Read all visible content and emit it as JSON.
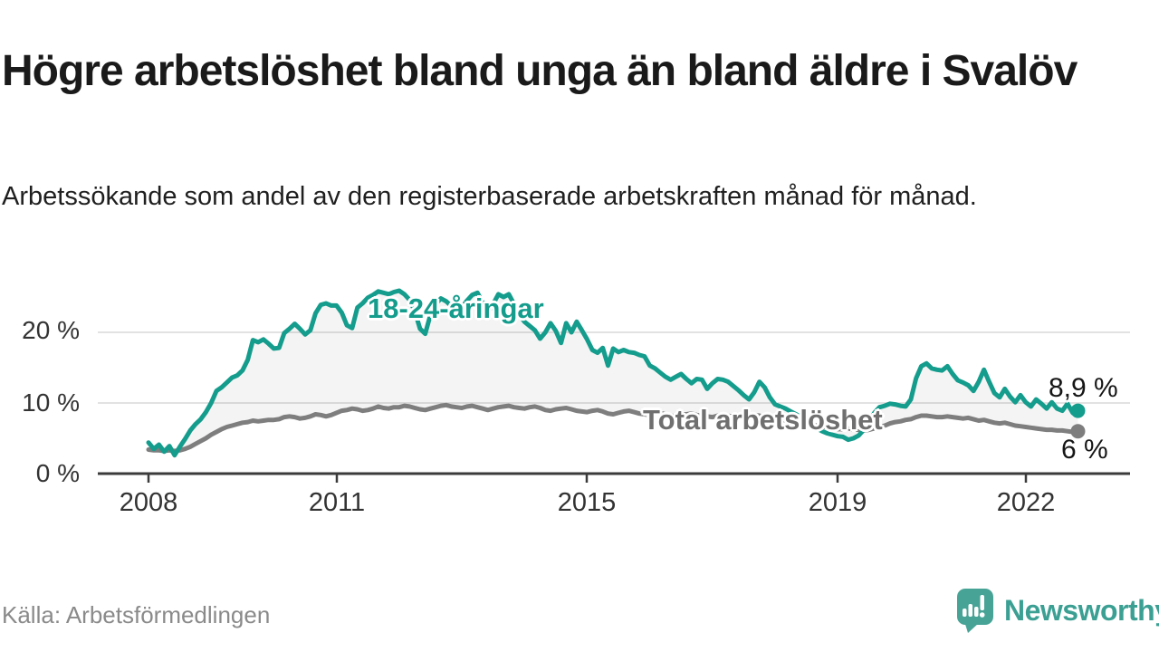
{
  "header": {
    "title": "Högre arbetslöshet bland unga än bland äldre i Svalöv",
    "subtitle": "Arbetssökande som andel av den registerbaserade arbetskraften månad för månad."
  },
  "footer": {
    "source": "Källa: Arbetsförmedlingen",
    "brand": "Newsworthy"
  },
  "colors": {
    "youth_line": "#149c8c",
    "total_line": "#7e7e7e",
    "between_fill": "rgba(130,130,130,0.09)",
    "grid": "#d8d8d8",
    "axis": "#3b3b3b",
    "logo": "#47a396",
    "brand_text": "#3ba093"
  },
  "chart_data": {
    "type": "line",
    "title": "Högre arbetslöshet bland unga än bland äldre i Svalöv",
    "subtitle": "Arbetssökande som andel av den registerbaserade arbetskraften månad för månad.",
    "source": "Källa: Arbetsförmedlingen",
    "frequency": "monthly",
    "x_start": "2008-01",
    "x_end": "2022-11",
    "ylim": [
      0,
      27
    ],
    "grid": "horizontal",
    "x_ticks": [
      "2008",
      "2011",
      "2015",
      "2019",
      "2022"
    ],
    "y_ticks": [
      "20 %",
      "10 %",
      "0 %"
    ],
    "y_tick_values": [
      20,
      10,
      0
    ],
    "series": [
      {
        "name": "18-24-åringar",
        "color": "#149c8c",
        "end_label": "8,9 %",
        "end_value": 8.9,
        "values": [
          4.4,
          3.5,
          4.1,
          3.1,
          3.9,
          2.6,
          3.8,
          4.9,
          6.1,
          7.0,
          7.7,
          8.7,
          10.0,
          11.7,
          12.2,
          12.9,
          13.6,
          13.9,
          14.6,
          16.1,
          18.9,
          18.6,
          19.0,
          18.4,
          17.7,
          17.8,
          19.9,
          20.5,
          21.2,
          20.5,
          19.7,
          20.3,
          22.7,
          23.9,
          24.1,
          23.8,
          23.8,
          22.8,
          21.0,
          20.6,
          23.5,
          24.1,
          24.9,
          25.3,
          25.8,
          25.6,
          25.4,
          25.7,
          25.9,
          25.4,
          24.6,
          23.0,
          20.5,
          19.8,
          22.5,
          24.0,
          24.8,
          24.4,
          23.7,
          23.2,
          23.5,
          24.5,
          25.3,
          25.6,
          24.2,
          22.8,
          24.0,
          25.4,
          25.0,
          25.4,
          24.0,
          22.5,
          21.5,
          20.9,
          20.3,
          19.1,
          20.0,
          21.3,
          20.2,
          18.5,
          21.3,
          20.0,
          21.5,
          20.3,
          19.0,
          17.5,
          17.1,
          17.8,
          15.3,
          17.7,
          17.2,
          17.5,
          17.2,
          17.1,
          16.8,
          16.6,
          15.3,
          14.9,
          14.3,
          13.7,
          13.3,
          13.7,
          14.1,
          13.4,
          12.8,
          13.4,
          13.3,
          12.0,
          12.8,
          13.4,
          13.3,
          13.0,
          12.4,
          11.8,
          11.1,
          10.5,
          11.5,
          13.0,
          12.2,
          10.8,
          9.8,
          9.5,
          9.2,
          8.8,
          8.4,
          8.0,
          7.5,
          7.0,
          6.4,
          6.0,
          5.7,
          5.5,
          5.3,
          5.2,
          4.8,
          5.0,
          5.4,
          6.2,
          7.3,
          8.6,
          9.4,
          9.6,
          9.9,
          9.8,
          9.6,
          9.5,
          10.5,
          13.5,
          15.2,
          15.6,
          14.9,
          14.7,
          14.6,
          15.2,
          14.1,
          13.2,
          12.9,
          12.5,
          11.7,
          13.0,
          14.7,
          13.0,
          11.4,
          10.8,
          12.0,
          10.9,
          10.1,
          11.1,
          10.1,
          9.5,
          10.5,
          9.9,
          9.2,
          10.1,
          9.2,
          8.9,
          9.9,
          8.6,
          8.9
        ]
      },
      {
        "name": "Total arbetslöshet",
        "color": "#7e7e7e",
        "end_label": "6 %",
        "end_value": 6.0,
        "values": [
          3.4,
          3.3,
          3.3,
          3.2,
          3.3,
          3.2,
          3.3,
          3.5,
          3.8,
          4.2,
          4.6,
          5.0,
          5.5,
          5.9,
          6.3,
          6.6,
          6.8,
          7.0,
          7.2,
          7.3,
          7.5,
          7.4,
          7.5,
          7.6,
          7.6,
          7.7,
          8.0,
          8.1,
          8.0,
          7.8,
          7.9,
          8.1,
          8.4,
          8.3,
          8.1,
          8.3,
          8.6,
          8.9,
          9.0,
          9.2,
          9.1,
          8.9,
          9.0,
          9.2,
          9.5,
          9.3,
          9.2,
          9.4,
          9.4,
          9.6,
          9.5,
          9.3,
          9.1,
          9.0,
          9.2,
          9.4,
          9.6,
          9.7,
          9.5,
          9.4,
          9.3,
          9.5,
          9.6,
          9.4,
          9.2,
          9.0,
          9.2,
          9.4,
          9.5,
          9.6,
          9.4,
          9.3,
          9.2,
          9.4,
          9.5,
          9.3,
          9.0,
          8.9,
          9.1,
          9.2,
          9.3,
          9.1,
          8.9,
          8.8,
          8.7,
          8.9,
          9.0,
          8.8,
          8.5,
          8.4,
          8.6,
          8.8,
          8.9,
          8.7,
          8.5,
          8.4,
          8.3,
          8.5,
          8.6,
          8.4,
          8.2,
          8.1,
          8.3,
          8.4,
          8.5,
          8.3,
          8.2,
          8.1,
          8.0,
          8.2,
          8.3,
          8.2,
          8.0,
          7.9,
          8.0,
          8.2,
          8.3,
          8.2,
          8.0,
          7.9,
          7.8,
          7.7,
          7.5,
          7.4,
          7.2,
          7.1,
          7.0,
          6.9,
          6.8,
          6.7,
          6.5,
          6.4,
          6.3,
          6.3,
          6.4,
          6.3,
          6.2,
          6.1,
          6.2,
          6.4,
          6.6,
          6.8,
          7.1,
          7.3,
          7.4,
          7.6,
          7.7,
          8.0,
          8.2,
          8.2,
          8.1,
          8.0,
          8.0,
          8.1,
          8.0,
          7.9,
          7.8,
          7.9,
          7.7,
          7.5,
          7.6,
          7.4,
          7.2,
          7.1,
          7.2,
          7.0,
          6.8,
          6.7,
          6.6,
          6.5,
          6.4,
          6.3,
          6.2,
          6.2,
          6.1,
          6.1,
          6.0,
          5.9,
          6.0
        ]
      }
    ]
  }
}
